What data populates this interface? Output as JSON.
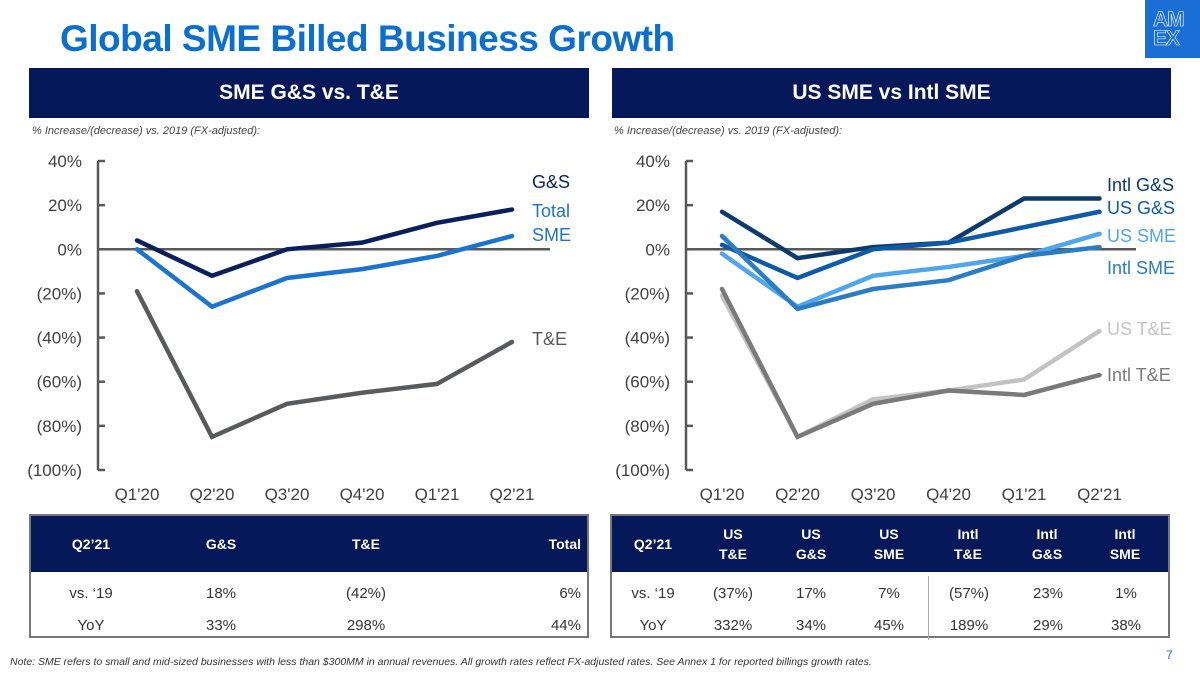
{
  "title": "Global SME Billed Business Growth",
  "logo": {
    "line1": "AM",
    "line2": "EX",
    "icon": "amex-logo-icon"
  },
  "left_panel": {
    "header": "SME G&S vs. T&E",
    "subnote": "% Increase/(decrease) vs. 2019 (FX-adjusted):",
    "table": {
      "headers": [
        "Q2’21",
        "G&S",
        "T&E",
        "Total"
      ],
      "rows": [
        [
          "vs. ‘19",
          "18%",
          "(42%)",
          "6%"
        ],
        [
          "YoY",
          "33%",
          "298%",
          "44%"
        ]
      ]
    }
  },
  "right_panel": {
    "header": "US SME vs Intl SME",
    "subnote": "% Increase/(decrease) vs. 2019 (FX-adjusted):",
    "table": {
      "headers": [
        "Q2’21",
        "US\nT&E",
        "US\nG&S",
        "US\nSME",
        "Intl\nT&E",
        "Intl\nG&S",
        "Intl\nSME"
      ],
      "header_lines": [
        [
          "Q2’21"
        ],
        [
          "US",
          "T&E"
        ],
        [
          "US",
          "G&S"
        ],
        [
          "US",
          "SME"
        ],
        [
          "Intl",
          "T&E"
        ],
        [
          "Intl",
          "G&S"
        ],
        [
          "Intl",
          "SME"
        ]
      ],
      "rows": [
        [
          "vs. ‘19",
          "(37%)",
          "17%",
          "7%",
          "(57%)",
          "23%",
          "1%"
        ],
        [
          "YoY",
          "332%",
          "34%",
          "45%",
          "189%",
          "29%",
          "38%"
        ]
      ]
    }
  },
  "footnote": "Note: SME refers to small and mid-sized businesses with less than $300MM in annual revenues. All growth rates reflect FX-adjusted rates. See Annex 1 for reported billings growth rates.",
  "page_number": "7",
  "chart_data": [
    {
      "type": "line",
      "title": "SME G&S vs. T&E",
      "ylabel": "% Increase/(decrease) vs. 2019 (FX-adjusted)",
      "categories": [
        "Q1'20",
        "Q2'20",
        "Q3'20",
        "Q4'20",
        "Q1'21",
        "Q2'21"
      ],
      "ylim": [
        -100,
        40
      ],
      "yticks": [
        40,
        20,
        0,
        -20,
        -40,
        -60,
        -80,
        -100
      ],
      "ytick_labels": [
        "40%",
        "20%",
        "0%",
        "(20%)",
        "(40%)",
        "(60%)",
        "(80%)",
        "(100%)"
      ],
      "grid": false,
      "legend": "right (inline labels)",
      "series": [
        {
          "name": "G&S",
          "label": "G&S",
          "color": "#0a1f5c",
          "values": [
            4,
            -12,
            0,
            3,
            12,
            18
          ]
        },
        {
          "name": "Total SME",
          "label": "Total\nSME",
          "color": "#1a74cf",
          "values": [
            0,
            -26,
            -13,
            -9,
            -3,
            6
          ]
        },
        {
          "name": "T&E",
          "label": "T&E",
          "color": "#595a5c",
          "values": [
            -19,
            -85,
            -70,
            -65,
            -61,
            -42
          ]
        }
      ]
    },
    {
      "type": "line",
      "title": "US SME vs Intl SME",
      "ylabel": "% Increase/(decrease) vs. 2019 (FX-adjusted)",
      "categories": [
        "Q1'20",
        "Q2'20",
        "Q3'20",
        "Q4'20",
        "Q1'21",
        "Q2'21"
      ],
      "ylim": [
        -100,
        40
      ],
      "yticks": [
        40,
        20,
        0,
        -20,
        -40,
        -60,
        -80,
        -100
      ],
      "ytick_labels": [
        "40%",
        "20%",
        "0%",
        "(20%)",
        "(40%)",
        "(60%)",
        "(80%)",
        "(100%)"
      ],
      "grid": false,
      "legend": "right (inline labels)",
      "series": [
        {
          "name": "Intl G&S",
          "label": "Intl G&S",
          "color": "#0c3a6e",
          "values": [
            17,
            -4,
            1,
            3,
            23,
            23
          ]
        },
        {
          "name": "US G&S",
          "label": "US G&S",
          "color": "#0e5aa7",
          "values": [
            2,
            -13,
            0,
            3,
            10,
            17
          ]
        },
        {
          "name": "US SME",
          "label": "US SME",
          "color": "#4ea6ec",
          "values": [
            -2,
            -26,
            -12,
            -8,
            -3,
            7
          ]
        },
        {
          "name": "Intl SME",
          "label": "Intl SME",
          "color": "#2a7cc4",
          "values": [
            6,
            -27,
            -18,
            -14,
            -3,
            1
          ]
        },
        {
          "name": "US T&E",
          "label": "US T&E",
          "color": "#c3c3c3",
          "values": [
            -21,
            -85,
            -68,
            -64,
            -59,
            -37
          ]
        },
        {
          "name": "Intl T&E",
          "label": "Intl T&E",
          "color": "#7a7a7a",
          "values": [
            -18,
            -85,
            -70,
            -64,
            -66,
            -57
          ]
        }
      ]
    }
  ]
}
